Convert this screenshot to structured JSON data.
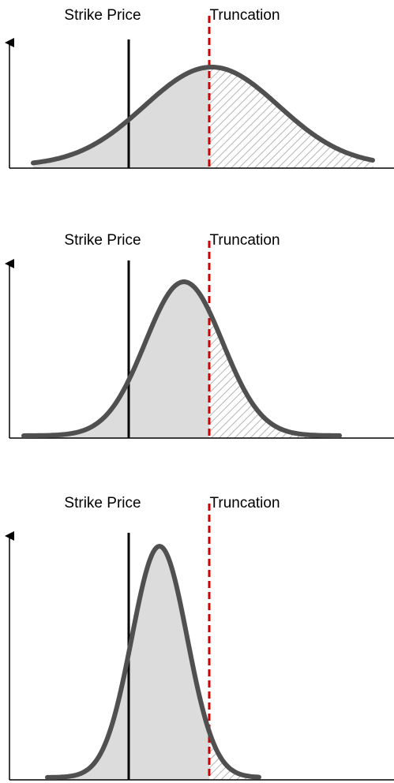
{
  "panels": [
    {
      "strike_label": "Strike Price",
      "truncation_label": "Truncation"
    },
    {
      "strike_label": "Strike Price",
      "truncation_label": "Truncation"
    },
    {
      "strike_label": "Strike Price",
      "truncation_label": "Truncation"
    }
  ]
}
